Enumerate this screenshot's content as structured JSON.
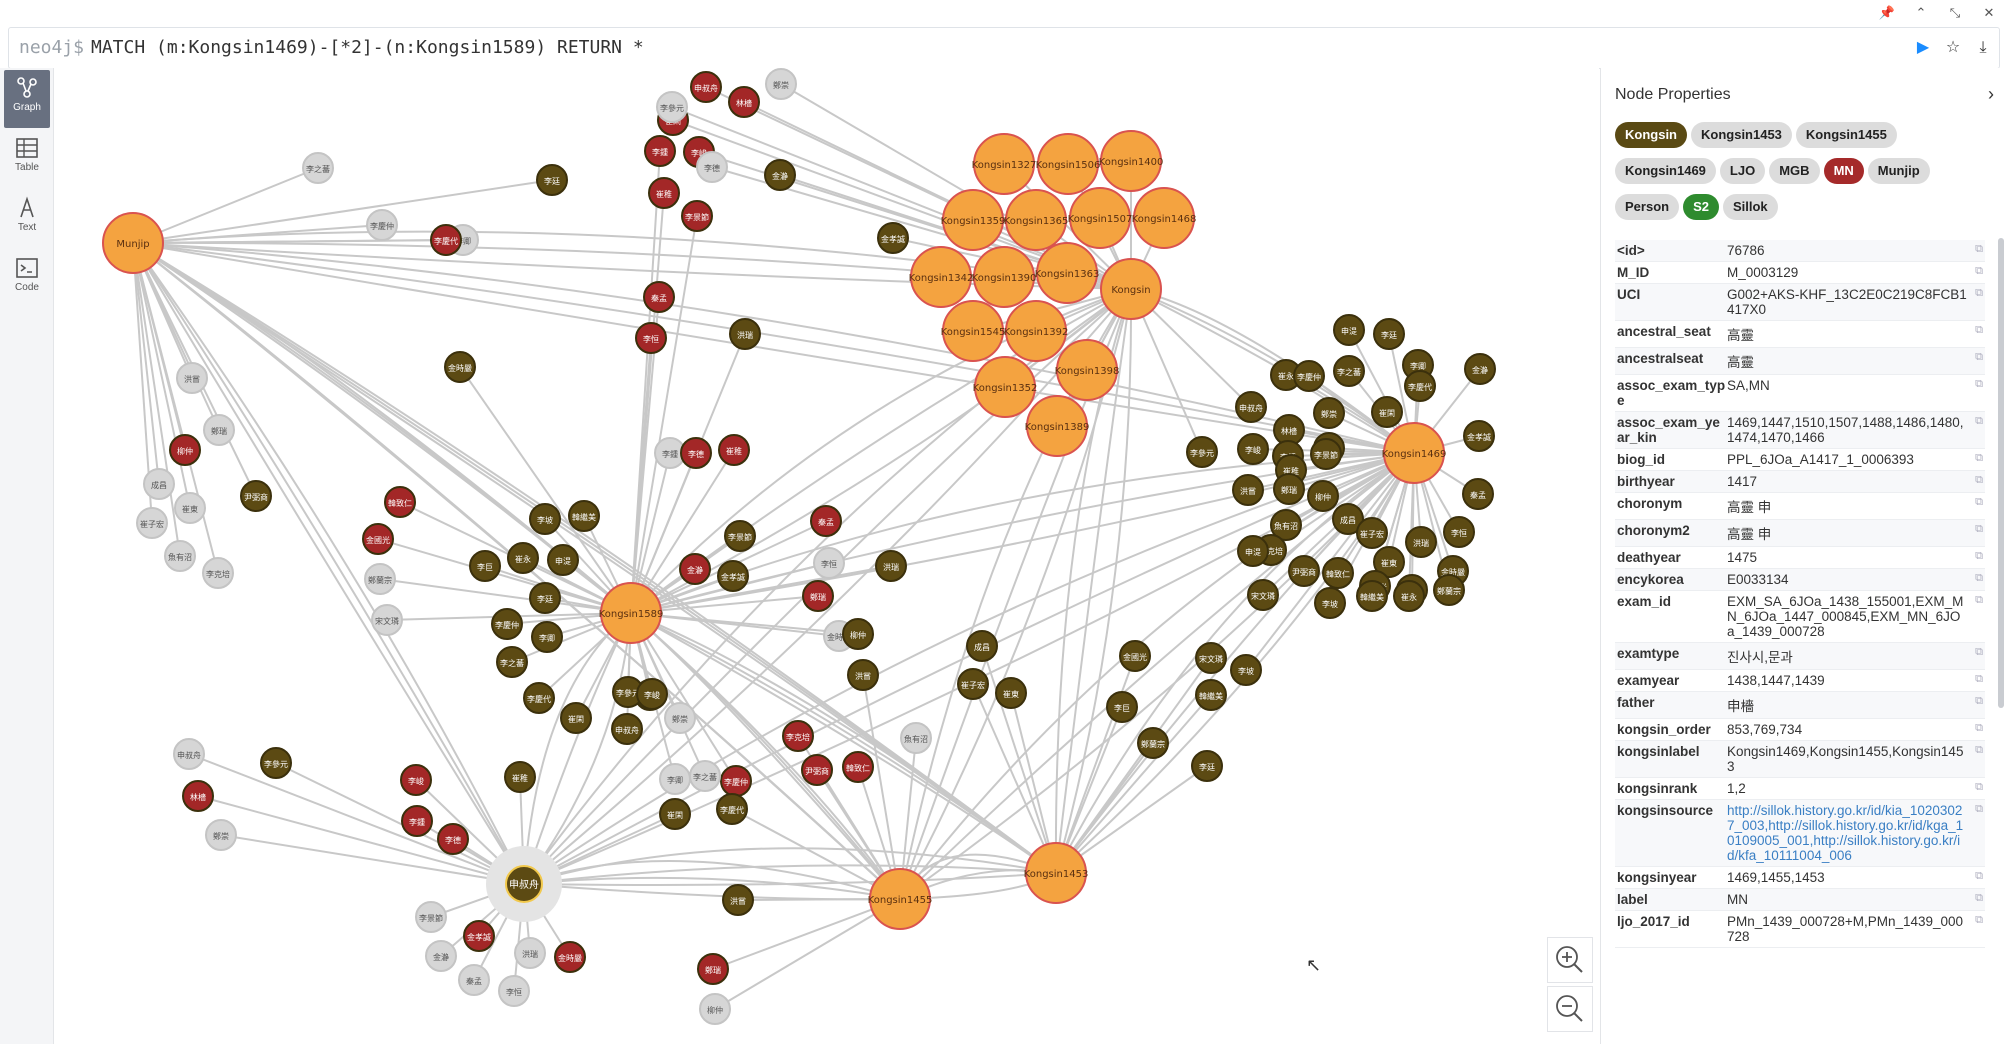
{
  "editor": {
    "prompt": "neo4j$",
    "query": "MATCH (m:Kongsin1469)-[*2]-(n:Kongsin1589) RETURN *"
  },
  "sidebar": {
    "items": [
      {
        "label": "Graph",
        "icon": "graph-icon"
      },
      {
        "label": "Table",
        "icon": "table-icon"
      },
      {
        "label": "Text",
        "icon": "text-icon"
      },
      {
        "label": "Code",
        "icon": "code-icon"
      }
    ]
  },
  "panel": {
    "title": "Node Properties",
    "labels": [
      {
        "name": "Kongsin",
        "bg": "#5a4a14",
        "fg": "#fff"
      },
      {
        "name": "Kongsin1453",
        "bg": "#dcdcdc",
        "fg": "#222"
      },
      {
        "name": "Kongsin1455",
        "bg": "#dcdcdc",
        "fg": "#222"
      },
      {
        "name": "Kongsin1469",
        "bg": "#dcdcdc",
        "fg": "#222"
      },
      {
        "name": "LJO",
        "bg": "#dcdcdc",
        "fg": "#222"
      },
      {
        "name": "MGB",
        "bg": "#dcdcdc",
        "fg": "#222"
      },
      {
        "name": "MN",
        "bg": "#a52a2a",
        "fg": "#fff"
      },
      {
        "name": "Munjip",
        "bg": "#dcdcdc",
        "fg": "#222"
      },
      {
        "name": "Person",
        "bg": "#dcdcdc",
        "fg": "#222"
      },
      {
        "name": "S2",
        "bg": "#2e8b2e",
        "fg": "#fff"
      },
      {
        "name": "Sillok",
        "bg": "#dcdcdc",
        "fg": "#222"
      }
    ],
    "properties": [
      {
        "key": "<id>",
        "value": "76786"
      },
      {
        "key": "M_ID",
        "value": "M_0003129"
      },
      {
        "key": "UCI",
        "value": "G002+AKS-KHF_13C2E0C219C8FCB1417X0"
      },
      {
        "key": "ancestral_seat",
        "value": "高靈"
      },
      {
        "key": "ancestralseat",
        "value": "高靈"
      },
      {
        "key": "assoc_exam_type",
        "value": "SA,MN"
      },
      {
        "key": "assoc_exam_year_kin",
        "value": "1469,1447,1510,1507,1488,1486,1480,1474,1470,1466"
      },
      {
        "key": "biog_id",
        "value": "PPL_6JOa_A1417_1_0006393"
      },
      {
        "key": "birthyear",
        "value": "1417"
      },
      {
        "key": "choronym",
        "value": "高靈 申"
      },
      {
        "key": "choronym2",
        "value": "高靈 申"
      },
      {
        "key": "deathyear",
        "value": "1475"
      },
      {
        "key": "encykorea",
        "value": "E0033134"
      },
      {
        "key": "exam_id",
        "value": "EXM_SA_6JOa_1438_155001,EXM_MN_6JOa_1447_000845,EXM_MN_6JOa_1439_000728"
      },
      {
        "key": "examtype",
        "value": "진사시,문과"
      },
      {
        "key": "examyear",
        "value": "1438,1447,1439"
      },
      {
        "key": "father",
        "value": "申檣"
      },
      {
        "key": "kongsin_order",
        "value": "853,769,734"
      },
      {
        "key": "kongsinlabel",
        "value": "Kongsin1469,Kongsin1455,Kongsin1453"
      },
      {
        "key": "kongsinrank",
        "value": "1,2"
      },
      {
        "key": "kongsinsource",
        "value": "http://sillok.history.go.kr/id/kia_10203027_003,http://sillok.history.go.kr/id/kga_10109005_001,http://sillok.history.go.kr/id/kfa_10111004_006",
        "link": true
      },
      {
        "key": "kongsinyear",
        "value": "1469,1455,1453"
      },
      {
        "key": "label",
        "value": "MN"
      },
      {
        "key": "ljo_2017_id",
        "value": "PMn_1439_000728+M,PMn_1439_000728"
      }
    ]
  },
  "graph": {
    "hubs": [
      "Munjip",
      "Kongsin1589",
      "Kongsin1469",
      "Kongsin1455",
      "Kongsin1453",
      "Kongsin",
      "申叔舟"
    ],
    "kongsin_cluster": [
      "Kongsin1327",
      "Kongsin1506",
      "Kongsin1400",
      "Kongsin1359",
      "Kongsin1365",
      "Kongsin1507",
      "Kongsin1468",
      "Kongsin1342",
      "Kongsin1390",
      "Kongsin1363",
      "Kongsin1545",
      "Kongsin1392",
      "Kongsin1398",
      "Kongsin1352",
      "Kongsin1389"
    ],
    "person_nodes": [
      "李廷",
      "李慶仲",
      "李之蕃",
      "李卿",
      "李慶代",
      "崔閑",
      "申叔舟",
      "林檣",
      "鄭崇",
      "李參元",
      "李峻",
      "李鍾",
      "李德",
      "崔稚",
      "李景節",
      "金瀞",
      "金孝誠",
      "秦孟",
      "李恒",
      "洪瑞",
      "金時嚴",
      "洪嘗",
      "鄭瑞",
      "柳仲",
      "成昌",
      "崔子宏",
      "崔東",
      "魚有沼",
      "李克培",
      "尹弼商",
      "韓致仁",
      "金國光",
      "李巨",
      "鄭蘭宗",
      "宋文璘",
      "李坡",
      "韓繼美",
      "崔永",
      "申湜"
    ]
  }
}
